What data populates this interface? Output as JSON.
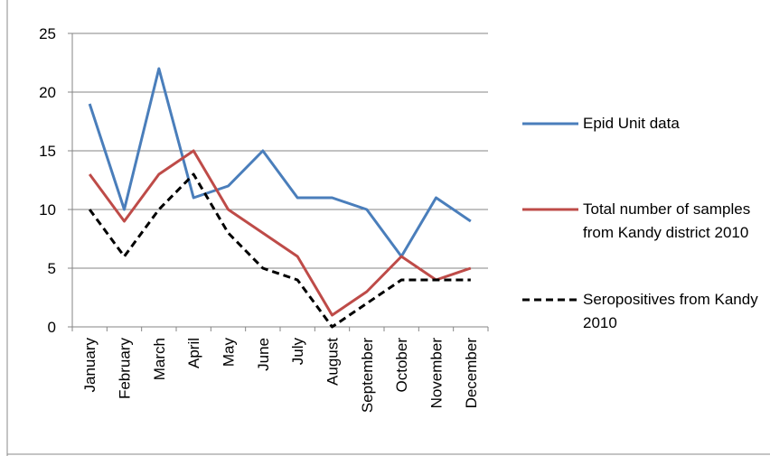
{
  "chart_data": {
    "type": "line",
    "categories": [
      "January",
      "February",
      "March",
      "April",
      "May",
      "June",
      "July",
      "August",
      "September",
      "October",
      "November",
      "December"
    ],
    "series": [
      {
        "name": "Epid Unit data",
        "color": "#4a7ebb",
        "values": [
          19,
          10,
          22,
          11,
          12,
          15,
          11,
          11,
          10,
          6,
          11,
          9
        ]
      },
      {
        "name": "Total number of samples from Kandy district 2010",
        "color": "#be4b48",
        "values": [
          13,
          9,
          13,
          15,
          10,
          8,
          6,
          1,
          3,
          6,
          4,
          5
        ]
      },
      {
        "name": "Seropositives from Kandy 2010",
        "color": "#000000",
        "dashed": true,
        "values": [
          10,
          6,
          10,
          13,
          8,
          5,
          4,
          0,
          2,
          4,
          4,
          4
        ]
      }
    ],
    "ylim": [
      0,
      25
    ],
    "yticks": [
      0,
      5,
      10,
      15,
      20,
      25
    ],
    "grid": true,
    "legend": "right"
  }
}
